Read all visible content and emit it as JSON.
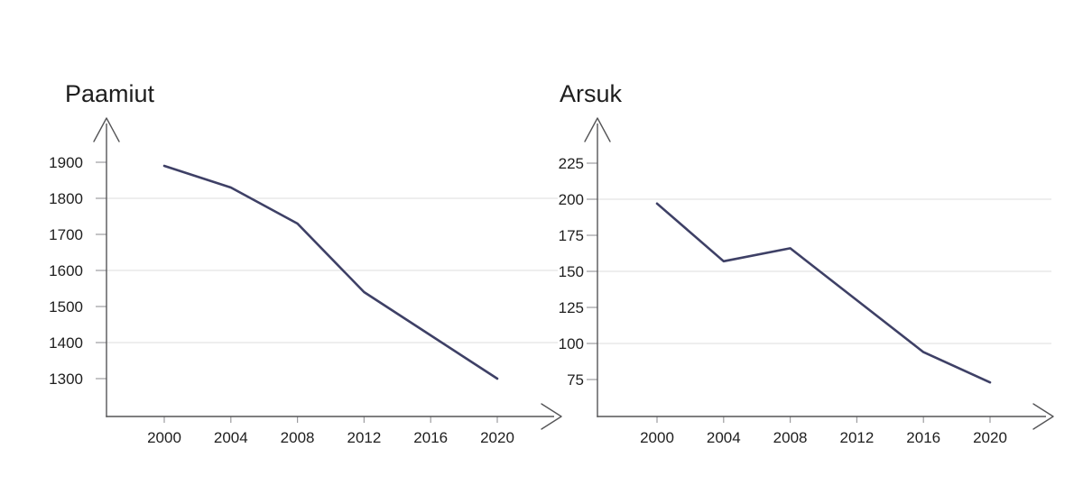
{
  "figure": {
    "background": "#ffffff",
    "description": "Two line charts showing population decline, 2000-2020"
  },
  "colors": {
    "line": "#3e4066",
    "axis": "#555557",
    "tick": "#9c9c9f",
    "gridline": "#dcdcde",
    "text": "#1e1e1e",
    "background": "#ffffff"
  },
  "chart_data": [
    {
      "type": "line",
      "title": "Paamiut",
      "x": [
        2000,
        2004,
        2008,
        2012,
        2016,
        2020
      ],
      "x_ticklabels": [
        "2000",
        "2004",
        "2008",
        "2012",
        "2016",
        "2020"
      ],
      "values": [
        1890,
        1830,
        1730,
        1540,
        1420,
        1300
      ],
      "y_ticks": [
        1300,
        1400,
        1500,
        1600,
        1700,
        1800,
        1900
      ],
      "gridlines_at": [
        1400,
        1600,
        1800
      ],
      "ylim": [
        1250,
        1950
      ],
      "xlim": [
        1997,
        2023
      ],
      "xlabel": "",
      "ylabel": "",
      "legend": "none",
      "grid": "horizontal-at-alternate-ticks",
      "axis_style": "arrow-ends"
    },
    {
      "type": "line",
      "title": "Arsuk",
      "x": [
        2000,
        2004,
        2008,
        2012,
        2016,
        2020
      ],
      "x_ticklabels": [
        "2000",
        "2004",
        "2008",
        "2012",
        "2016",
        "2020"
      ],
      "values": [
        197,
        157,
        166,
        130,
        94,
        73
      ],
      "y_ticks": [
        75,
        100,
        125,
        150,
        175,
        200,
        225
      ],
      "gridlines_at": [
        100,
        150,
        200
      ],
      "ylim": [
        62,
        237
      ],
      "xlim": [
        1997,
        2023
      ],
      "xlabel": "",
      "ylabel": "",
      "legend": "none",
      "grid": "horizontal-at-alternate-ticks",
      "axis_style": "arrow-ends"
    }
  ]
}
